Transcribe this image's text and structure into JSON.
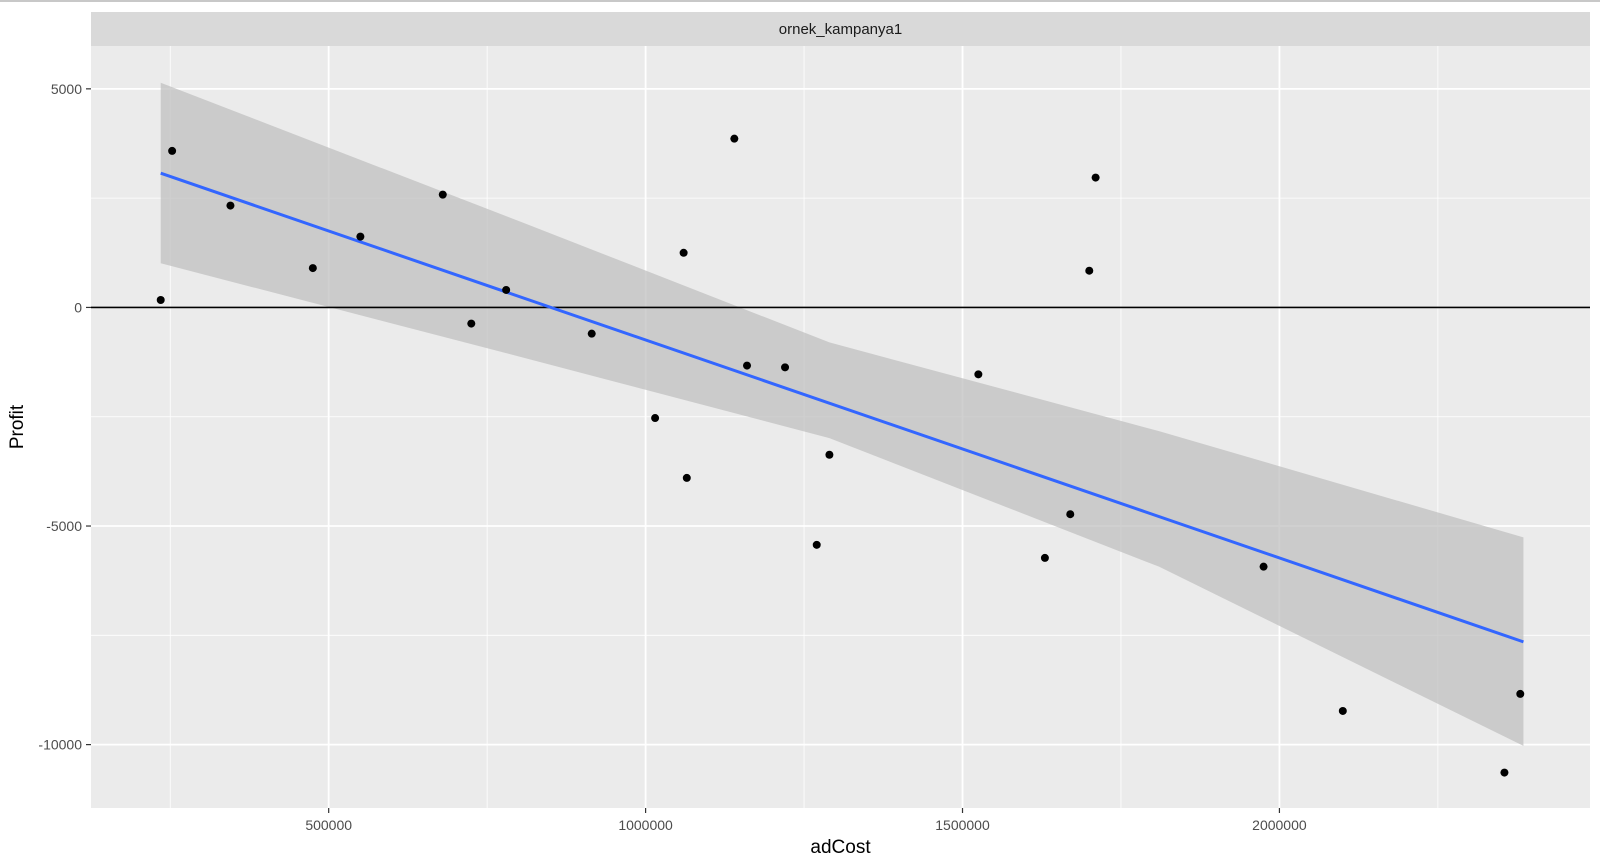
{
  "colors": {
    "panel_background": "#ebebeb",
    "grid_major": "#ffffff",
    "strip_background": "#d9d9d9",
    "points": "#000000",
    "fit_line": "#3366ff",
    "confidence_band": "#c0c0c0",
    "zero_line": "#000000"
  },
  "chart_data": {
    "type": "scatter",
    "facet_label": "ornek_kampanya1",
    "xlabel": "adCost",
    "ylabel": "Profit",
    "xlim": [
      125000,
      2490000
    ],
    "ylim": [
      -11450,
      5980
    ],
    "x_ticks": [
      500000,
      1000000,
      1500000,
      2000000
    ],
    "x_tick_labels": [
      "500000",
      "1000000",
      "1500000",
      "2000000"
    ],
    "y_ticks": [
      5000,
      0,
      -5000,
      -10000
    ],
    "y_tick_labels": [
      "5000",
      "0",
      "-5000",
      "-10000"
    ],
    "hline": 0,
    "grid": true,
    "points": [
      {
        "x": 235000,
        "y": 170
      },
      {
        "x": 253000,
        "y": 3580
      },
      {
        "x": 345000,
        "y": 2330
      },
      {
        "x": 475000,
        "y": 900
      },
      {
        "x": 550000,
        "y": 1620
      },
      {
        "x": 680000,
        "y": 2580
      },
      {
        "x": 725000,
        "y": -370
      },
      {
        "x": 780000,
        "y": 400
      },
      {
        "x": 915000,
        "y": -600
      },
      {
        "x": 1015000,
        "y": -2530
      },
      {
        "x": 1060000,
        "y": 1250
      },
      {
        "x": 1065000,
        "y": -3900
      },
      {
        "x": 1140000,
        "y": 3860
      },
      {
        "x": 1160000,
        "y": -1330
      },
      {
        "x": 1220000,
        "y": -1370
      },
      {
        "x": 1270000,
        "y": -5430
      },
      {
        "x": 1290000,
        "y": -3370
      },
      {
        "x": 1525000,
        "y": -1530
      },
      {
        "x": 1630000,
        "y": -5730
      },
      {
        "x": 1670000,
        "y": -4730
      },
      {
        "x": 1700000,
        "y": 840
      },
      {
        "x": 1710000,
        "y": 2970
      },
      {
        "x": 1975000,
        "y": -5930
      },
      {
        "x": 2100000,
        "y": -9230
      },
      {
        "x": 2355000,
        "y": -10640
      },
      {
        "x": 2380000,
        "y": -8840
      }
    ],
    "fit_line": {
      "method": "lm",
      "x": [
        235000,
        2385000
      ],
      "y": [
        3070,
        -7650
      ]
    },
    "confidence_band": {
      "x": [
        235000,
        810000,
        1290000,
        1810000,
        2385000
      ],
      "upper": [
        5140,
        1920,
        -800,
        -2830,
        -5260
      ],
      "lower": [
        1010,
        -1160,
        -2990,
        -5930,
        -10030
      ]
    }
  }
}
